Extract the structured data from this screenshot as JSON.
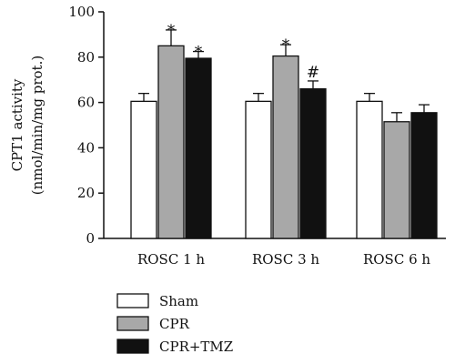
{
  "chart_data": {
    "type": "bar",
    "ylabel_line1": "CPT1 activity",
    "ylabel_line2": "(nmol/min/mg prot.)",
    "ylim": [
      0,
      100
    ],
    "yticks": [
      "0",
      "20",
      "40",
      "60",
      "80",
      "100"
    ],
    "categories": [
      "ROSC 1 h",
      "ROSC 3 h",
      "ROSC 6 h"
    ],
    "series": [
      {
        "name": "Sham",
        "color": "#ffffff",
        "values": [
          60.5,
          60.5,
          60.5
        ],
        "errors": [
          3.5,
          3.5,
          3.5
        ],
        "annotations": [
          "",
          "",
          ""
        ]
      },
      {
        "name": "CPR",
        "color": "#a8a8a8",
        "values": [
          85,
          80.5,
          51.5
        ],
        "errors": [
          7,
          5,
          4
        ],
        "annotations": [
          "*",
          "*",
          ""
        ]
      },
      {
        "name": "CPR+TMZ",
        "color": "#111111",
        "values": [
          79.5,
          66,
          55.5
        ],
        "errors": [
          3,
          3.5,
          3.5
        ],
        "annotations": [
          "*",
          "#",
          ""
        ]
      }
    ],
    "grid": false,
    "legend_position": "bottom-left"
  }
}
